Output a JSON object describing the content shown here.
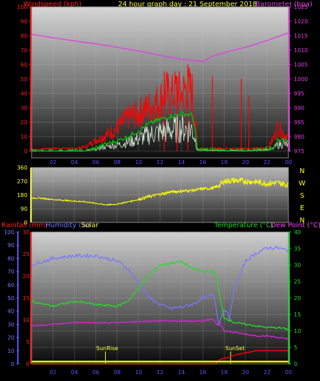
{
  "header": {
    "title": "24 hour graph day : 21 September 2018",
    "left_label": "Windspeed (kph)",
    "right_label": "Barometer (hpa)"
  },
  "labels": {
    "rainfall": "Rainfall (mm)",
    "humidity": "Humidity (%)",
    "solar": "Solar",
    "temperature": "Temperature (°C)",
    "dewpoint": "Dew Point (°C)",
    "sunrise": "SunRise",
    "sunset": "SunSet"
  },
  "colors": {
    "windspeed_label": "#ff2020",
    "barometer": "#e040e0",
    "title": "#ffff40",
    "gust": "#ff0000",
    "avg_wind": "#00cc00",
    "wind_light": "#d8f0d8",
    "direction": "#ffff00",
    "humidity": "#7777ff",
    "temperature": "#22dd22",
    "dewpoint": "#dd22dd",
    "rainfall": "#ff0000",
    "solar": "#ffff00",
    "frame": "#5555ff",
    "compass": "#ffff00"
  },
  "chart_data": [
    {
      "type": "line",
      "title": "24 hour graph day : 21 September 2018",
      "x_ticks": [
        "02",
        "04",
        "06",
        "08",
        "10",
        "12",
        "14",
        "16",
        "18",
        "20",
        "22",
        "00"
      ],
      "y_left_label": "Windspeed (kph)",
      "y_left_ticks": [
        "0",
        "10",
        "20",
        "30",
        "40",
        "50",
        "60",
        "70",
        "80",
        "90",
        "100"
      ],
      "y_left_lim": [
        0,
        100
      ],
      "y_right_label": "Barometer (hpa)",
      "y_right_ticks": [
        "975",
        "980",
        "985",
        "990",
        "995",
        "1000",
        "1005",
        "1010",
        "1015",
        "1020",
        "1025"
      ],
      "y_right_lim": [
        975,
        1025
      ],
      "series": [
        {
          "name": "Barometer (hpa)",
          "axis": "right",
          "x": [
            0,
            2,
            4,
            6,
            8,
            10,
            12,
            14,
            15.5,
            16,
            17,
            18,
            20,
            22,
            24
          ],
          "y": [
            1015.5,
            1014.3,
            1013.2,
            1012.2,
            1011.0,
            1009.7,
            1008.2,
            1006.8,
            1006.3,
            1006.0,
            1008.0,
            1009.2,
            1011.0,
            1013.3,
            1016.0
          ]
        },
        {
          "name": "Wind gust",
          "axis": "left",
          "x": [
            0,
            2,
            4,
            5,
            6,
            7,
            8,
            9,
            10,
            11,
            12,
            12.5,
            13,
            13.5,
            14,
            14.5,
            15,
            15.2,
            15.5,
            16,
            18,
            19,
            20,
            21,
            22,
            22.5,
            23,
            23.5,
            24
          ],
          "y": [
            1,
            2,
            2,
            3,
            8,
            12,
            17,
            25,
            28,
            33,
            38,
            45,
            40,
            46,
            42,
            48,
            44,
            30,
            2,
            2,
            2,
            2,
            2,
            2,
            2,
            8,
            18,
            14,
            10
          ]
        },
        {
          "name": "Wind average",
          "axis": "left",
          "x": [
            0,
            5,
            6,
            7,
            8,
            9,
            10,
            11,
            12,
            13,
            14,
            15,
            15.2,
            15.5,
            20,
            22.5,
            23,
            23.5,
            24
          ],
          "y": [
            0,
            0,
            2,
            5,
            7,
            10,
            14,
            19,
            22,
            24,
            26,
            25,
            18,
            1,
            0,
            2,
            7,
            9,
            6
          ]
        }
      ],
      "gust_spikes": [
        {
          "x": 12.4,
          "y": 55
        },
        {
          "x": 13.6,
          "y": 52
        },
        {
          "x": 14.6,
          "y": 60
        },
        {
          "x": 16.9,
          "y": 52
        },
        {
          "x": 19.6,
          "y": 50
        },
        {
          "x": 20.3,
          "y": 38
        }
      ]
    },
    {
      "type": "line",
      "title": "",
      "y_ticks": [
        "0",
        "90",
        "180",
        "270",
        "360"
      ],
      "ylim": [
        0,
        360
      ],
      "compass_letters": [
        "N",
        "W",
        "S",
        "E",
        "N"
      ],
      "series": [
        {
          "name": "Wind direction",
          "x": [
            0,
            1,
            2,
            3,
            4,
            5,
            6,
            7,
            8,
            9,
            10,
            11,
            12,
            13,
            14,
            15,
            16,
            17,
            17.5,
            18,
            19,
            20,
            21,
            22,
            23,
            24
          ],
          "y": [
            160,
            158,
            150,
            145,
            140,
            135,
            125,
            115,
            120,
            135,
            150,
            170,
            185,
            200,
            205,
            210,
            220,
            225,
            240,
            270,
            275,
            270,
            265,
            255,
            260,
            245
          ]
        }
      ]
    },
    {
      "type": "line",
      "title": "",
      "x_ticks": [
        "02",
        "04",
        "06",
        "08",
        "10",
        "12",
        "14",
        "16",
        "18",
        "20",
        "22",
        "00"
      ],
      "y_left_label": "Rainfall (mm)",
      "y_left_ticks": [
        "0",
        "5",
        "10",
        "15",
        "20",
        "25",
        "30"
      ],
      "y_left_lim": [
        0,
        30
      ],
      "y_left2_label": "Humidity (%)",
      "y_left2_ticks": [
        "0",
        "10",
        "20",
        "30",
        "40",
        "50",
        "60",
        "70",
        "80",
        "90",
        "100"
      ],
      "y_left2_lim": [
        0,
        100
      ],
      "y_right_label": "Temperature (°C)",
      "y_right_ticks": [
        "0",
        "5",
        "10",
        "15",
        "20",
        "25",
        "30",
        "35",
        "40"
      ],
      "y_right_lim": [
        0,
        40
      ],
      "series": [
        {
          "name": "Humidity (%)",
          "axis": "left2",
          "x": [
            0,
            2,
            4,
            6,
            8,
            9,
            10,
            11,
            12,
            13,
            14,
            15,
            16,
            17,
            17.2,
            17.5,
            18,
            18.5,
            19,
            20,
            21,
            22,
            23,
            24
          ],
          "y": [
            75,
            80,
            82,
            82,
            78,
            72,
            62,
            50,
            45,
            42,
            43,
            45,
            50,
            52,
            45,
            30,
            42,
            35,
            58,
            78,
            84,
            88,
            88,
            86
          ]
        },
        {
          "name": "Temperature (°C)",
          "axis": "right",
          "x": [
            0,
            2,
            4,
            6,
            8,
            9,
            10,
            11,
            12,
            13,
            14,
            15,
            16,
            17,
            17.3,
            17.6,
            18,
            19,
            20,
            21,
            22,
            23,
            24
          ],
          "y": [
            19,
            17.5,
            19,
            18,
            17.5,
            19,
            23,
            27,
            30,
            30.5,
            31,
            29,
            28,
            28,
            26,
            20,
            14,
            12.5,
            12,
            11.5,
            11,
            11,
            10.5
          ]
        },
        {
          "name": "Dew Point (°C)",
          "axis": "right",
          "x": [
            0,
            2,
            4,
            6,
            8,
            10,
            12,
            14,
            16,
            17,
            17.3,
            17.6,
            18,
            19,
            20,
            21,
            22,
            23,
            24
          ],
          "y": [
            11.5,
            12,
            12.5,
            12.5,
            12.5,
            12.8,
            13,
            13,
            13,
            13.5,
            12,
            12.5,
            10,
            9.5,
            9,
            8.5,
            8.5,
            8,
            7.5
          ]
        },
        {
          "name": "Rainfall (mm)",
          "axis": "left",
          "x": [
            0,
            17.2,
            17.6,
            18.5,
            19,
            20,
            21,
            22,
            23,
            24
          ],
          "y": [
            0,
            0,
            1,
            1.5,
            2,
            2.5,
            3,
            3,
            3,
            3
          ]
        },
        {
          "name": "Solar",
          "axis": "left",
          "x": [
            0,
            24
          ],
          "y": [
            0.5,
            0.5
          ]
        }
      ],
      "sunrise_x": 6.9,
      "sunset_x": 18.6
    }
  ]
}
